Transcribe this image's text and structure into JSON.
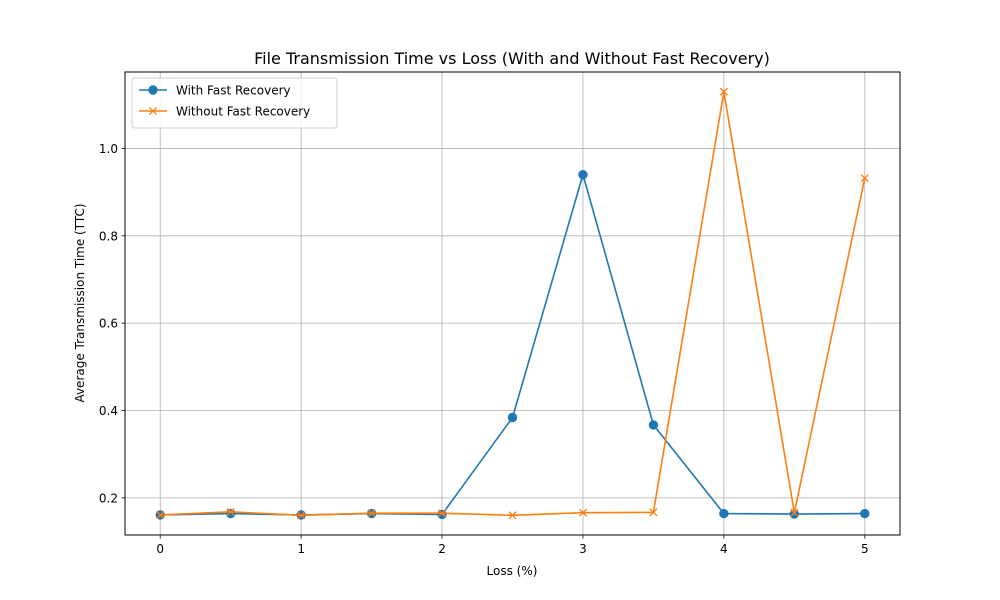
{
  "chart_data": {
    "type": "line",
    "title": "File Transmission Time vs Loss (With and Without Fast Recovery)",
    "xlabel": "Loss (%)",
    "ylabel": "Average Transmission Time (TTC)",
    "xlim": [
      -0.25,
      5.25
    ],
    "ylim": [
      0.115,
      1.175
    ],
    "xticks": [
      0,
      1,
      2,
      3,
      4,
      5
    ],
    "xtick_labels": [
      "0",
      "1",
      "2",
      "3",
      "4",
      "5"
    ],
    "yticks": [
      0.2,
      0.4,
      0.6,
      0.8,
      1.0
    ],
    "ytick_labels": [
      "0.2",
      "0.4",
      "0.6",
      "0.8",
      "1.0"
    ],
    "grid": true,
    "legend_position": "top-left",
    "x": [
      0,
      0.5,
      1,
      1.5,
      2,
      2.5,
      3,
      3.5,
      4,
      4.5,
      5
    ],
    "series": [
      {
        "name": "With Fast Recovery",
        "color": "#1f77b4",
        "marker": "circle",
        "values": [
          0.161,
          0.164,
          0.161,
          0.164,
          0.162,
          0.384,
          0.94,
          0.367,
          0.164,
          0.163,
          0.164
        ]
      },
      {
        "name": "Without Fast Recovery",
        "color": "#ff7f0e",
        "marker": "x",
        "values": [
          0.161,
          0.168,
          0.16,
          0.165,
          0.165,
          0.16,
          0.166,
          0.167,
          1.13,
          0.166,
          0.932
        ]
      }
    ]
  }
}
